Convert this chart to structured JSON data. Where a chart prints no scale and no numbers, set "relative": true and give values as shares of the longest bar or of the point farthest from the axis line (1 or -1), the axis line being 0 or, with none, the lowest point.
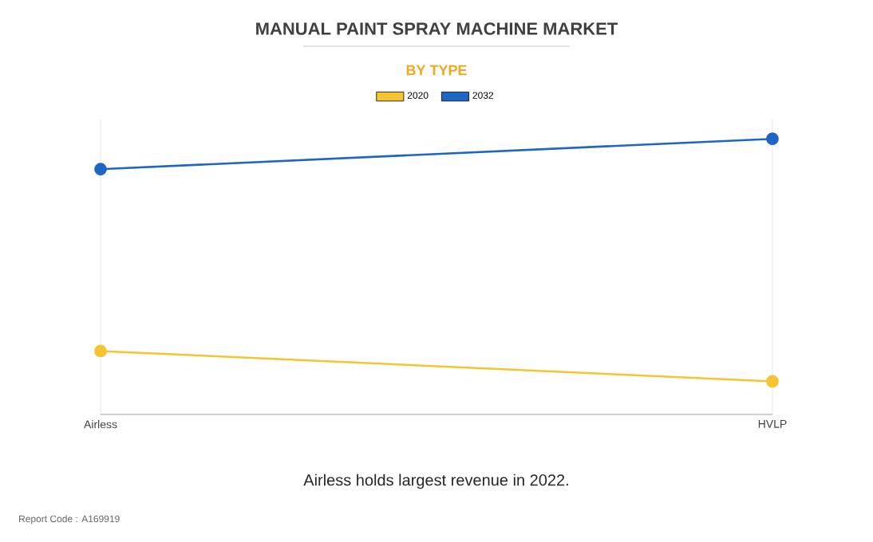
{
  "chart_data": {
    "type": "line",
    "title": "MANUAL PAINT SPRAY MACHINE MARKET",
    "subtitle": "BY TYPE",
    "categories": [
      "Airless",
      "HVLP"
    ],
    "series": [
      {
        "name": "2020",
        "color": "#f5c431",
        "values": [
          0.23,
          0.12
        ]
      },
      {
        "name": "2032",
        "color": "#1f65c6",
        "values": [
          0.89,
          1
        ]
      }
    ],
    "relative": true,
    "grid": true,
    "legend": "top",
    "marker": "circle",
    "line_style": "solid",
    "annotations": [
      "Airless holds largest revenue in 2022.",
      "Report Code : A169919"
    ]
  }
}
